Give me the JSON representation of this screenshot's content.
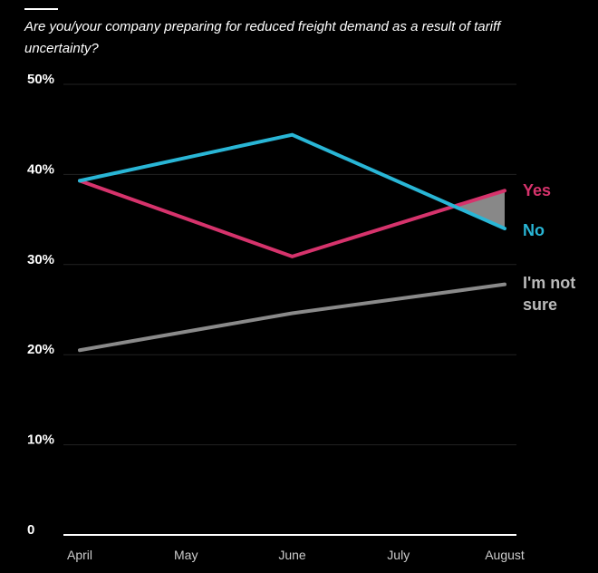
{
  "chart_data": {
    "type": "line",
    "title": "Are you/your company preparing for reduced freight demand as a result of tariff uncertainty?",
    "xlabel": "",
    "ylabel": "",
    "categories": [
      "April",
      "May",
      "June",
      "July",
      "August"
    ],
    "yticks": [
      "0",
      "10%",
      "20%",
      "30%",
      "40%",
      "50%"
    ],
    "ylim": [
      0,
      50
    ],
    "grid": true,
    "legend": "right-inline",
    "series": [
      {
        "name": "Yes",
        "label_lines": [
          "Yes"
        ],
        "color": "#d6336c",
        "points": [
          {
            "x": "April",
            "y": 39.3
          },
          {
            "x": "June",
            "y": 30.9
          },
          {
            "x": "August",
            "y": 38.2
          }
        ]
      },
      {
        "name": "No",
        "label_lines": [
          "No"
        ],
        "color": "#29b6d6",
        "points": [
          {
            "x": "April",
            "y": 39.3
          },
          {
            "x": "June",
            "y": 44.4
          },
          {
            "x": "August",
            "y": 34.0
          }
        ]
      },
      {
        "name": "I'm not sure",
        "label_lines": [
          "I'm not",
          "sure"
        ],
        "color": "#8a8a8a",
        "points": [
          {
            "x": "April",
            "y": 20.5
          },
          {
            "x": "June",
            "y": 24.6
          },
          {
            "x": "August",
            "y": 27.8
          }
        ]
      }
    ],
    "shaded_gap_color": "#888888"
  }
}
